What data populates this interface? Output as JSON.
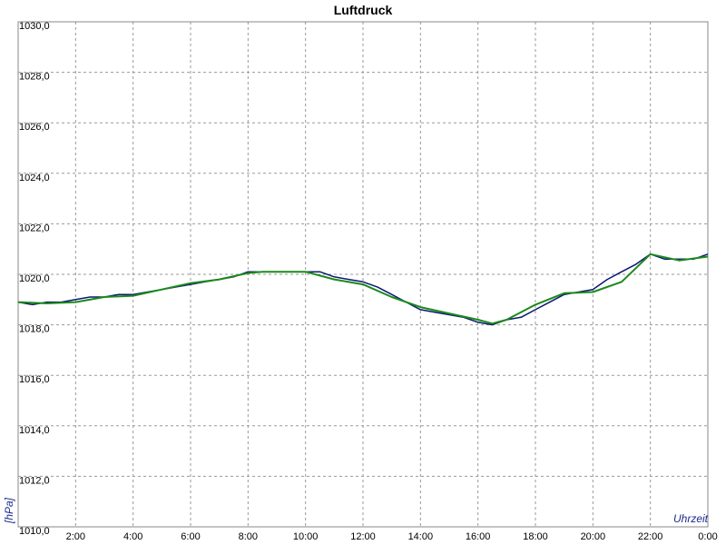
{
  "chart_data": {
    "type": "line",
    "title": "Luftdruck",
    "ylabel": "[hPa]",
    "xlabel": "Uhrzeit",
    "ylim": [
      1010,
      1030
    ],
    "xlim": [
      0,
      24
    ],
    "y_ticks": [
      "1010,0",
      "1012,0",
      "1014,0",
      "1016,0",
      "1018,0",
      "1020,0",
      "1022,0",
      "1024,0",
      "1026,0",
      "1028,0",
      "1030,0"
    ],
    "x_ticks": [
      "2:00",
      "4:00",
      "6:00",
      "8:00",
      "10:00",
      "12:00",
      "14:00",
      "16:00",
      "18:00",
      "20:00",
      "22:00",
      "0:00"
    ],
    "grid": true,
    "colors": {
      "measured": "#0b1870",
      "smoothed": "#1b8a1b",
      "axis_label": "#1a2a8c"
    },
    "series": [
      {
        "key": "measured",
        "x": [
          0,
          0.5,
          1,
          1.5,
          2,
          2.5,
          3,
          3.5,
          4,
          4.5,
          5,
          5.5,
          6,
          6.5,
          7,
          7.5,
          8,
          8.5,
          9,
          9.5,
          10,
          10.5,
          11,
          11.5,
          12,
          12.5,
          13,
          13.5,
          14,
          14.5,
          15,
          15.5,
          16,
          16.5,
          17,
          17.5,
          18,
          18.5,
          19,
          19.5,
          20,
          20.5,
          21,
          21.5,
          22,
          22.5,
          23,
          23.5,
          24
        ],
        "values": [
          1018.9,
          1018.8,
          1018.9,
          1018.9,
          1019.0,
          1019.1,
          1019.1,
          1019.2,
          1019.2,
          1019.3,
          1019.4,
          1019.5,
          1019.6,
          1019.7,
          1019.8,
          1019.9,
          1020.1,
          1020.1,
          1020.1,
          1020.1,
          1020.1,
          1020.1,
          1019.9,
          1019.8,
          1019.7,
          1019.5,
          1019.2,
          1018.9,
          1018.6,
          1018.5,
          1018.4,
          1018.3,
          1018.1,
          1018.0,
          1018.2,
          1018.3,
          1018.6,
          1018.9,
          1019.2,
          1019.3,
          1019.4,
          1019.8,
          1020.1,
          1020.4,
          1020.8,
          1020.6,
          1020.6,
          1020.6,
          1020.8
        ]
      },
      {
        "key": "smoothed",
        "x": [
          0,
          1,
          2,
          3,
          4,
          5,
          6,
          7,
          8,
          8.5,
          9,
          10,
          11,
          12,
          13,
          14,
          15,
          16,
          16.5,
          17,
          18,
          19,
          20,
          21,
          22,
          23,
          24
        ],
        "values": [
          1018.9,
          1018.85,
          1018.9,
          1019.1,
          1019.15,
          1019.4,
          1019.65,
          1019.8,
          1020.05,
          1020.1,
          1020.1,
          1020.1,
          1019.8,
          1019.6,
          1019.1,
          1018.7,
          1018.45,
          1018.2,
          1018.05,
          1018.2,
          1018.8,
          1019.25,
          1019.3,
          1019.7,
          1020.8,
          1020.55,
          1020.7
        ]
      }
    ]
  }
}
